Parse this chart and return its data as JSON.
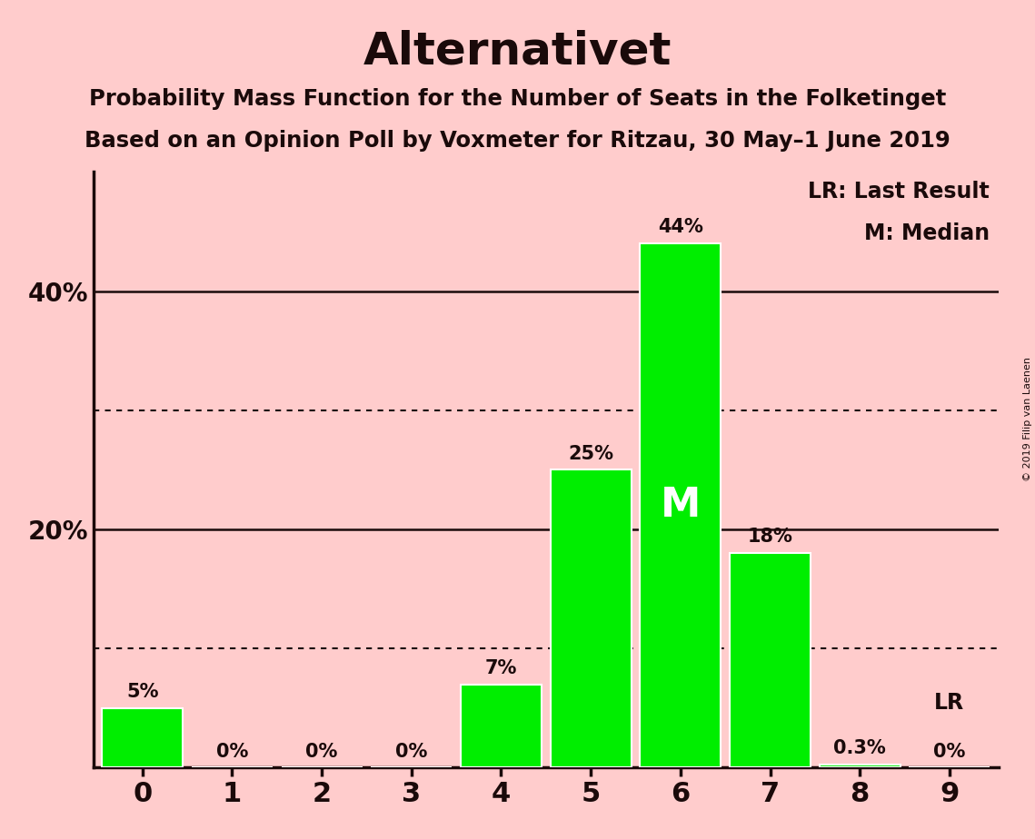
{
  "title": "Alternativet",
  "subtitle1": "Probability Mass Function for the Number of Seats in the Folketinget",
  "subtitle2": "Based on an Opinion Poll by Voxmeter for Ritzau, 30 May–1 June 2019",
  "copyright_text": "© 2019 Filip van Laenen",
  "categories": [
    0,
    1,
    2,
    3,
    4,
    5,
    6,
    7,
    8,
    9
  ],
  "values": [
    5,
    0,
    0,
    0,
    7,
    25,
    44,
    18,
    0.3,
    0
  ],
  "bar_color": "#00ee00",
  "background_color": "#ffcccc",
  "bar_edge_color": "#ffffff",
  "text_color": "#1a0a0a",
  "ylabel_ticks": [
    20,
    40
  ],
  "ylim": [
    0,
    50
  ],
  "dotted_lines": [
    10,
    30
  ],
  "solid_lines": [
    20,
    40
  ],
  "median_seat": 6,
  "lr_seat": 9,
  "annotations": {
    "0": "5%",
    "1": "0%",
    "2": "0%",
    "3": "0%",
    "4": "7%",
    "5": "25%",
    "6": "44%",
    "7": "18%",
    "8": "0.3%",
    "9": "0%"
  },
  "legend_lr": "LR: Last Result",
  "legend_m": "M: Median",
  "lr_label": "LR",
  "median_label": "M"
}
